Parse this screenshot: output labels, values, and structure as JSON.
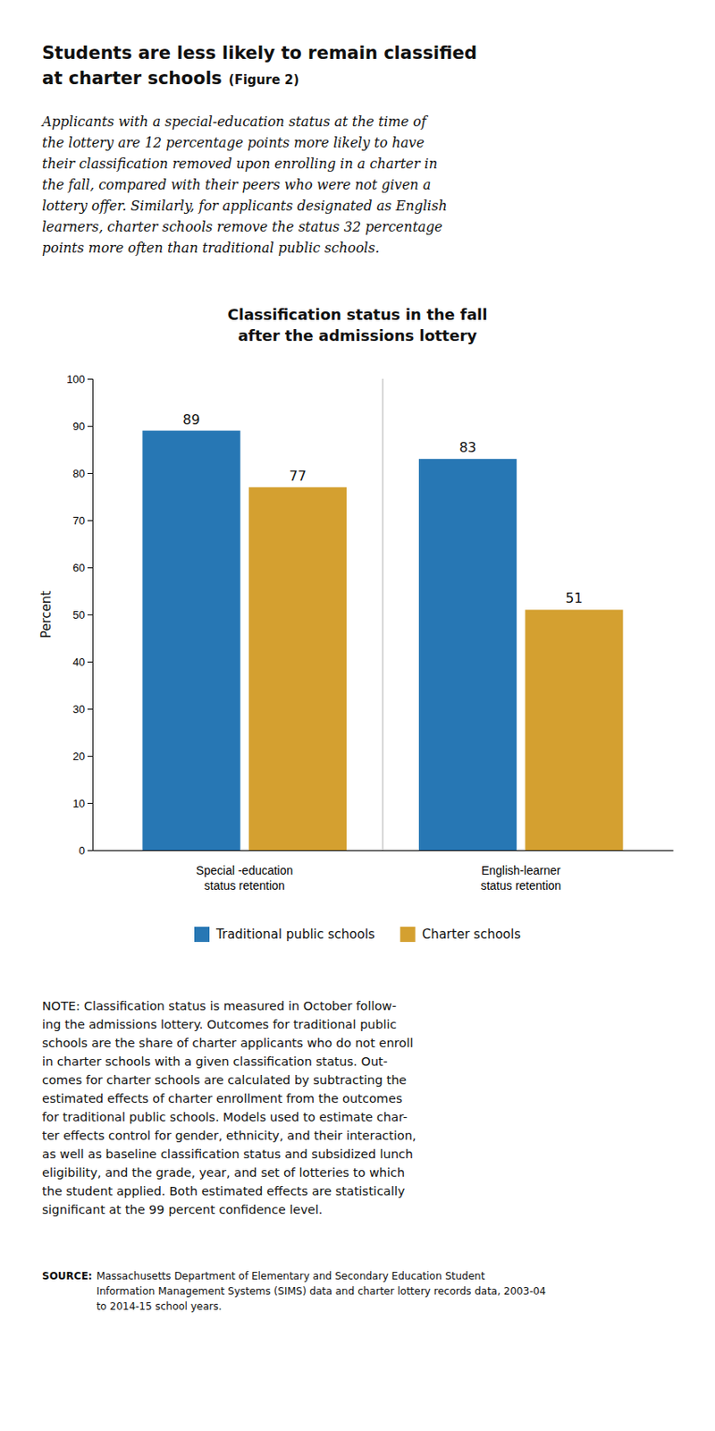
{
  "chart_data": {
    "type": "bar",
    "title": "Students are less likely to remain classified\nat charter schools",
    "subtitle": "Applicants with a special-education status at the time of\nthe lottery are 12 percentage points more likely to have\ntheir classification removed upon enrolling in a charter in\nthe fall, compared with their peers who were not given a\nlottery offer. Similarly, for applicants designated as English\nlearners, charter schools remove the status 32 percentage\npoints more often than traditional public schools.",
    "categories": [
      "Special -education\nstatus retention",
      "English-learner\nstatus retention"
    ],
    "series": [
      {
        "name": "Traditional public schools",
        "color": "#2777b4",
        "values": [
          89,
          83
        ]
      },
      {
        "name": "Charter schools",
        "color": "#d4a030",
        "values": [
          77,
          51
        ]
      }
    ],
    "ylabel": "Percent",
    "ylim": [
      0,
      100
    ],
    "yticks": [
      0,
      10,
      20,
      30,
      40,
      50,
      60,
      70,
      80,
      90,
      100
    ],
    "data_labels": true,
    "legend": "bottom",
    "grid": false,
    "annotations": [
      "(Figure 2)",
      "Classification status in the fall\nafter the admissions lottery",
      "NOTE: Classification status is measured in October follow-\ning the admissions lottery. Outcomes for traditional public\nschools are the share of charter applicants who do not enroll\nin charter schools with a given classification status. Out-\ncomes for charter schools are calculated by subtracting the\nestimated effects of charter enrollment from the outcomes\nfor traditional public schools. Models used to estimate char-\nter effects control for gender, ethnicity, and their interaction,\nas well as baseline classification status and subsidized lunch\neligibility, and the grade, year, and set of lotteries to which\nthe student applied. Both estimated effects are statistically\nsignificant at the 99 percent confidence level.",
      "SOURCE:",
      "Massachusetts Department of Elementary and Secondary Education Student\nInformation Management Systems (SIMS) data and charter lottery records data, 2003-04\nto 2014-15 school years."
    ]
  }
}
